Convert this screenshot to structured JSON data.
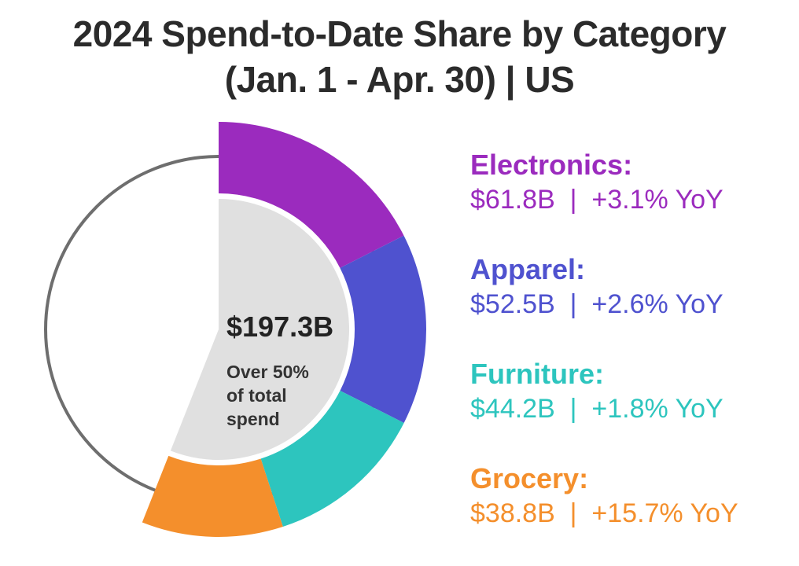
{
  "title": {
    "line1": "2024 Spend-to-Date Share by Category",
    "line2": "(Jan. 1 - Apr. 30)  |  US"
  },
  "chart_data": {
    "type": "pie",
    "title": "2024 Spend-to-Date Share by Category (Jan. 1 - Apr. 30) | US",
    "total_label": "$197.3B",
    "center_note": [
      "Over 50%",
      "of total",
      "spend"
    ],
    "total_share_percent": 56,
    "slices": [
      {
        "name": "Electronics",
        "label": "Electronics:",
        "value": 61.8,
        "value_label": "$61.8B",
        "yoy": "+3.1% YoY",
        "color": "#9b2bbe"
      },
      {
        "name": "Apparel",
        "label": "Apparel:",
        "value": 52.5,
        "value_label": "$52.5B",
        "yoy": "+2.6% YoY",
        "color": "#4f52cf"
      },
      {
        "name": "Furniture",
        "label": "Furniture:",
        "value": 44.2,
        "value_label": "$44.2B",
        "yoy": "+1.8% YoY",
        "color": "#2dc5be"
      },
      {
        "name": "Grocery",
        "label": "Grocery:",
        "value": 38.8,
        "value_label": "$38.8B",
        "yoy": "+15.7% YoY",
        "color": "#f48f2c"
      }
    ],
    "remainder_color": "#e0e0e0",
    "outline_color": "#6e6e6e"
  }
}
